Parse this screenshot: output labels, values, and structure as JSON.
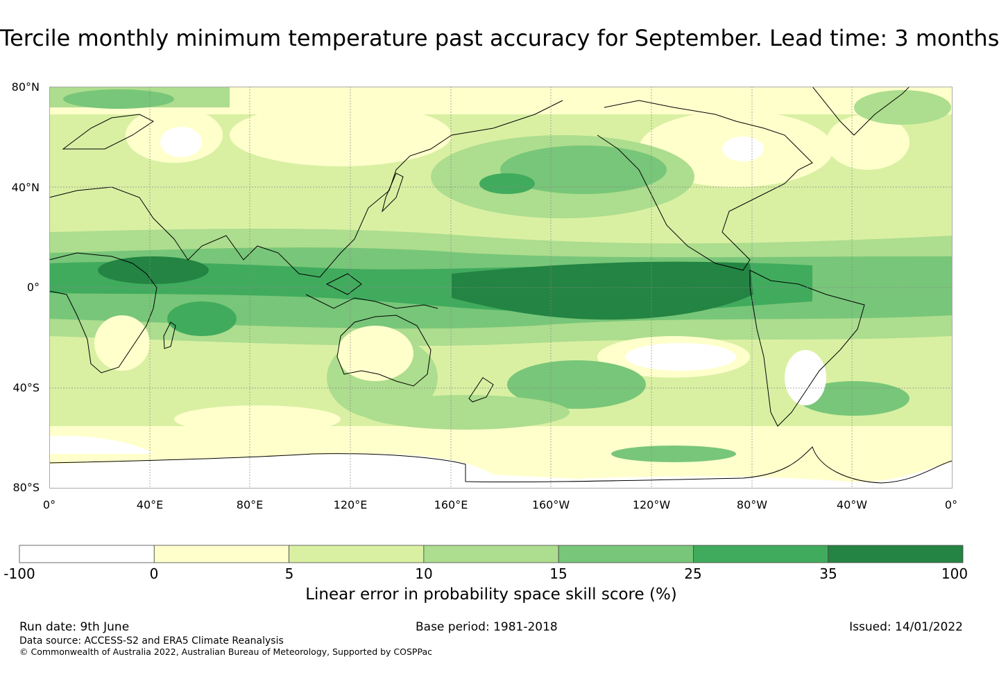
{
  "title": "Tercile monthly minimum temperature past accuracy for September. Lead time: 3 months",
  "map": {
    "lat_labels": [
      "80°N",
      "40°N",
      "0°",
      "40°S",
      "80°S"
    ],
    "lon_labels": [
      "0°",
      "40°E",
      "80°E",
      "120°E",
      "160°E",
      "160°W",
      "120°W",
      "80°W",
      "40°W",
      "0°"
    ]
  },
  "colorbar": {
    "ticks": [
      "-100",
      "0",
      "5",
      "10",
      "15",
      "25",
      "35",
      "100"
    ],
    "colors": [
      "#ffffff",
      "#ffffcc",
      "#d9f0a3",
      "#addd8e",
      "#78c679",
      "#41ab5d",
      "#238443"
    ],
    "label": "Linear error in probability space skill score (%)"
  },
  "footer": {
    "run_date": "Run date: 9th June",
    "base_period": "Base period: 1981-2018",
    "issued": "Issued: 14/01/2022",
    "data_source": "Data source: ACCESS-S2 and ERA5 Climate Reanalysis",
    "copyright": "© Commonwealth of Australia 2022, Australian Bureau of Meteorology, Supported by COSPPac"
  }
}
